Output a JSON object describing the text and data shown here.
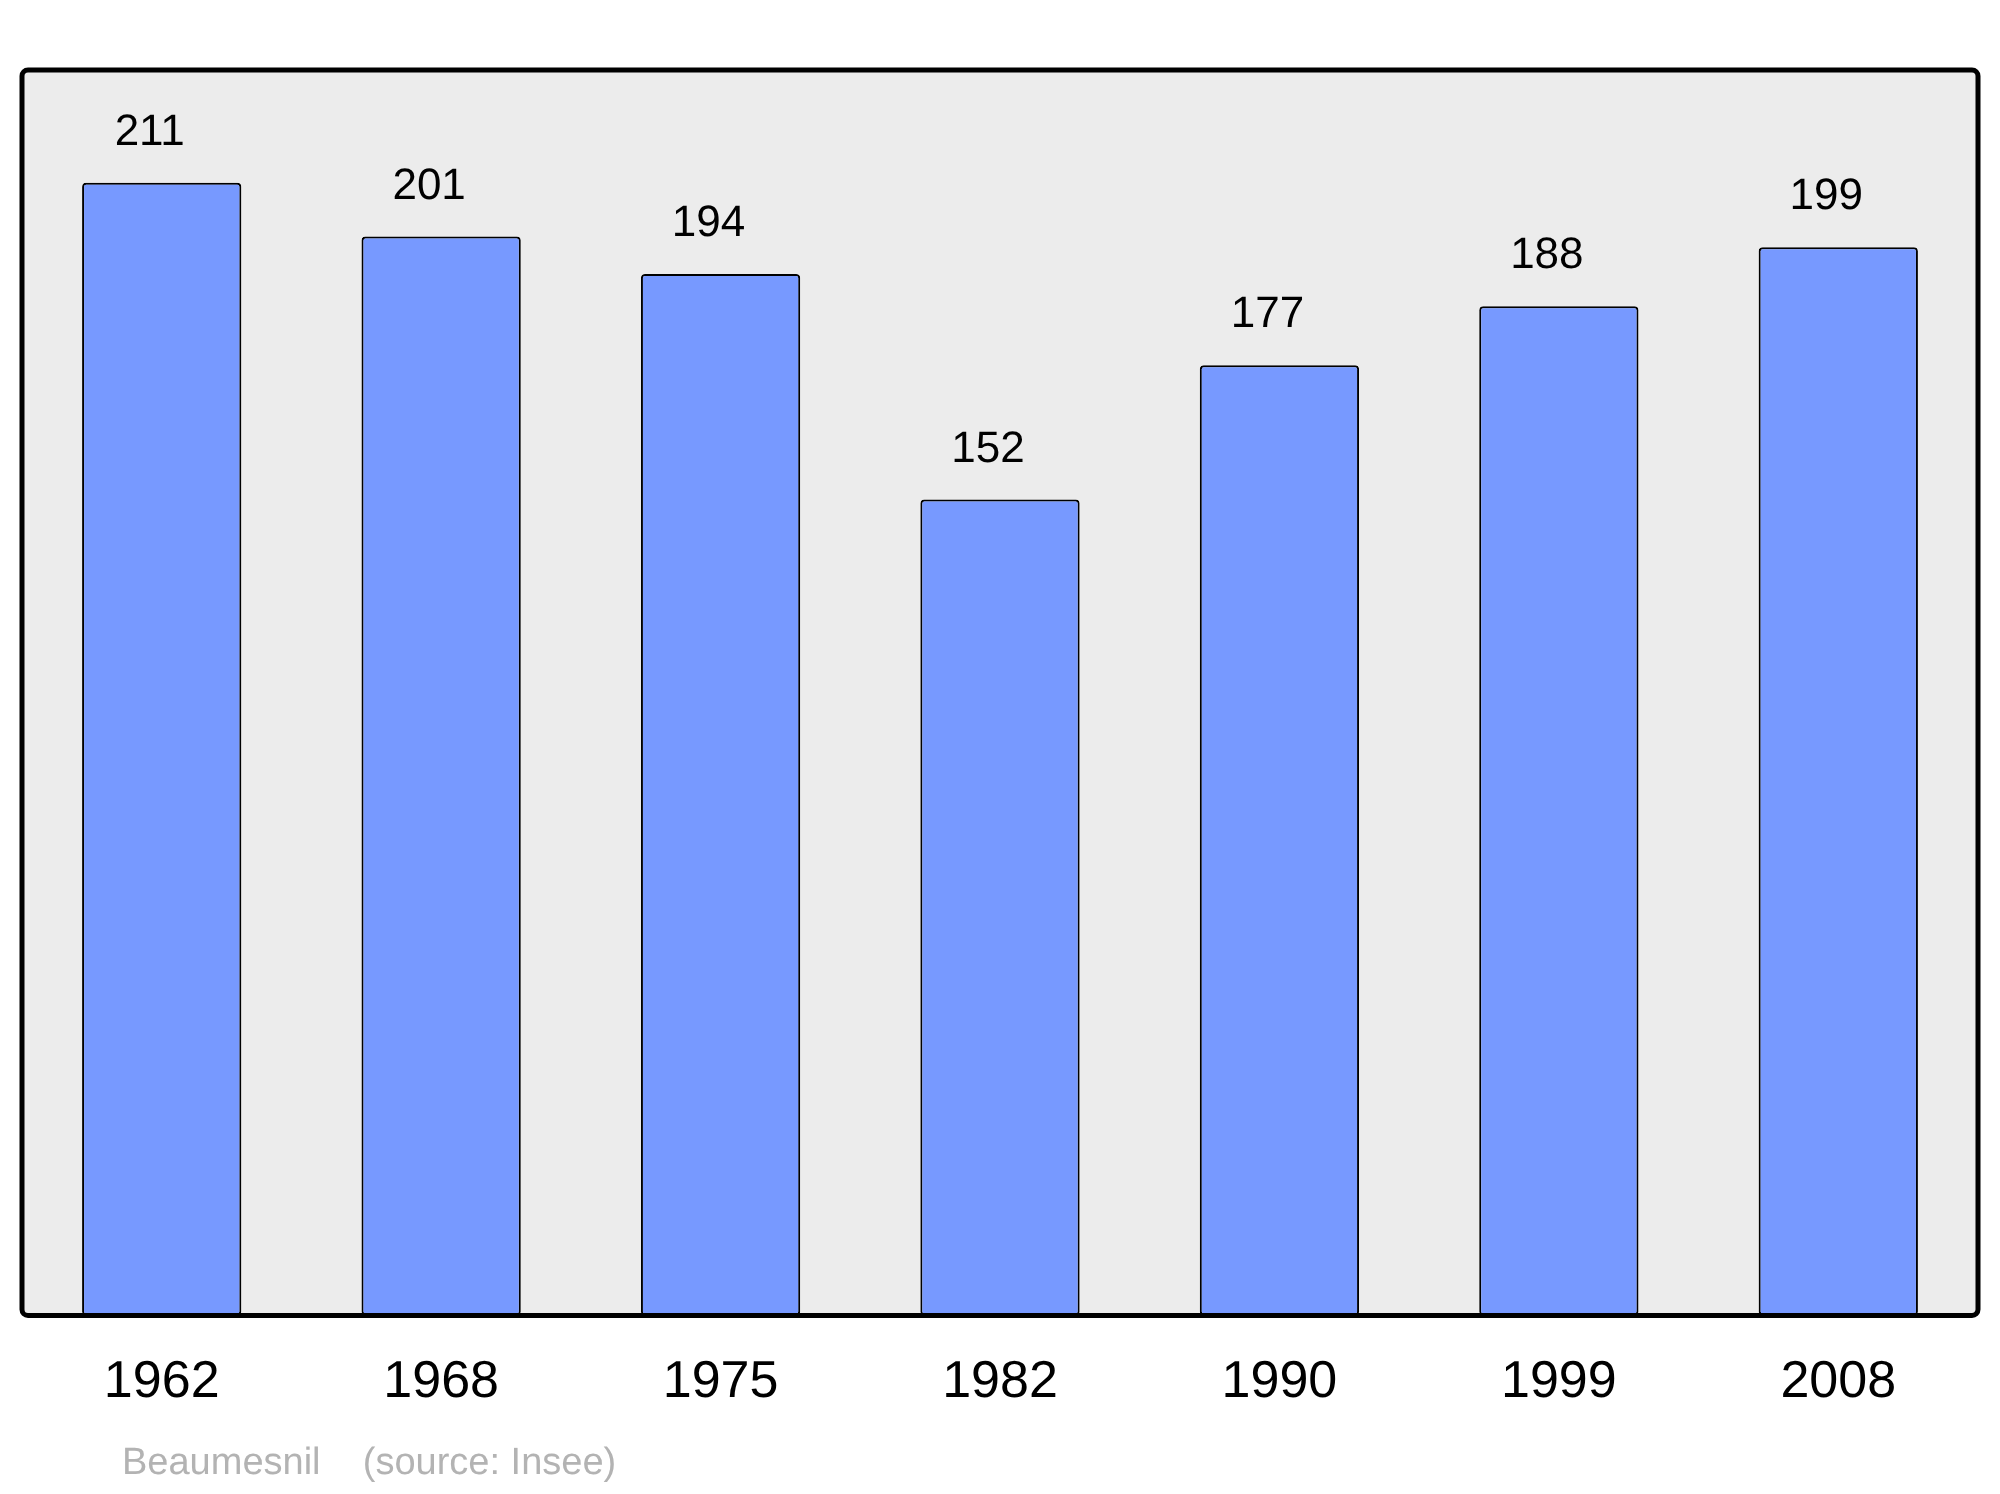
{
  "chart_data": {
    "type": "bar",
    "categories": [
      "1962",
      "1968",
      "1975",
      "1982",
      "1990",
      "1999",
      "2008"
    ],
    "values": [
      211,
      201,
      194,
      152,
      177,
      188,
      199
    ],
    "color": "#7799ff",
    "ylim": [
      0,
      232
    ],
    "data_labels": true,
    "grid": false,
    "legend": false,
    "annotations": [
      "Beaumesnil    (source: Insee)"
    ]
  }
}
